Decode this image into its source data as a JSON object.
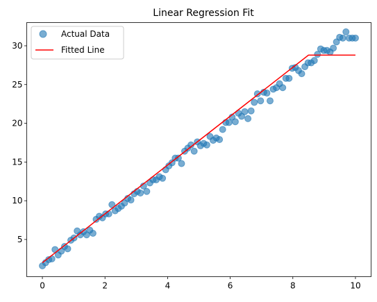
{
  "chart_data": {
    "type": "scatter",
    "title": "Linear Regression Fit",
    "xlabel": "",
    "ylabel": "",
    "xlim": [
      -0.5,
      10.5
    ],
    "ylim": [
      0.2,
      33.0
    ],
    "xticks": [
      0,
      2,
      4,
      6,
      8,
      10
    ],
    "yticks": [
      5,
      10,
      15,
      20,
      25,
      30
    ],
    "grid": false,
    "legend_position": "top-left",
    "series": [
      {
        "name": "Actual Data",
        "kind": "scatter",
        "color": "#1f77b4",
        "x": [
          0.0,
          0.101,
          0.202,
          0.303,
          0.404,
          0.505,
          0.606,
          0.707,
          0.808,
          0.909,
          1.01,
          1.111,
          1.212,
          1.313,
          1.414,
          1.515,
          1.616,
          1.717,
          1.818,
          1.919,
          2.02,
          2.121,
          2.222,
          2.323,
          2.424,
          2.525,
          2.626,
          2.727,
          2.828,
          2.929,
          3.03,
          3.131,
          3.232,
          3.333,
          3.434,
          3.535,
          3.636,
          3.737,
          3.838,
          3.939,
          4.04,
          4.141,
          4.242,
          4.343,
          4.444,
          4.545,
          4.646,
          4.747,
          4.848,
          4.949,
          5.051,
          5.152,
          5.253,
          5.354,
          5.455,
          5.556,
          5.657,
          5.758,
          5.859,
          5.96,
          6.061,
          6.162,
          6.263,
          6.364,
          6.465,
          6.566,
          6.667,
          6.768,
          6.869,
          6.97,
          7.071,
          7.172,
          7.273,
          7.374,
          7.475,
          7.576,
          7.677,
          7.778,
          7.879,
          7.98,
          8.081,
          8.182,
          8.283,
          8.384,
          8.485,
          8.586,
          8.687,
          8.788,
          8.889,
          8.99,
          9.091,
          9.192,
          9.293,
          9.394,
          9.495,
          9.596,
          9.697,
          9.798,
          9.899,
          10.0
        ],
        "y": [
          1.6,
          2.0,
          2.4,
          2.5,
          3.7,
          3.0,
          3.5,
          4.1,
          3.8,
          4.9,
          5.2,
          6.1,
          5.6,
          6.0,
          5.6,
          6.2,
          5.8,
          7.6,
          8.0,
          7.8,
          8.3,
          8.3,
          9.5,
          8.7,
          9.0,
          9.3,
          9.7,
          10.3,
          10.1,
          10.9,
          11.2,
          11.0,
          11.9,
          11.2,
          12.3,
          12.7,
          12.7,
          13.1,
          12.9,
          14.0,
          14.5,
          14.9,
          15.5,
          15.5,
          14.8,
          16.4,
          16.8,
          17.2,
          16.4,
          17.6,
          17.1,
          17.4,
          17.2,
          18.3,
          17.8,
          18.1,
          17.9,
          19.2,
          20.1,
          20.1,
          20.8,
          20.2,
          21.3,
          20.9,
          21.5,
          20.6,
          21.6,
          22.7,
          23.8,
          22.9,
          24.0,
          23.9,
          22.9,
          24.4,
          24.6,
          25.1,
          24.6,
          25.8,
          25.8,
          27.1,
          27.2,
          26.8,
          26.4,
          27.3,
          27.8,
          27.8,
          28.1,
          28.9,
          29.6,
          29.4,
          29.4,
          29.2,
          29.7,
          30.5,
          31.1,
          31.0,
          31.8,
          31.0,
          31.0,
          31.0
        ]
      },
      {
        "name": "Fitted Line",
        "kind": "line",
        "color": "#ff0000",
        "x": [
          0.0,
          8.5,
          10.0
        ],
        "y": [
          2.0,
          28.8,
          28.8
        ]
      }
    ]
  }
}
